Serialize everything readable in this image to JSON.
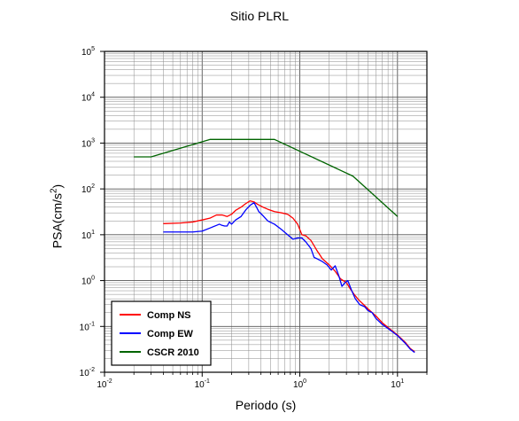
{
  "chart_data": {
    "type": "line",
    "title": "Sitio PLRL",
    "xlabel": "Periodo (s)",
    "ylabel_text": "PSA(cm/s",
    "ylabel_sup": "2",
    "ylabel_close": ")",
    "x_scale": "log",
    "y_scale": "log",
    "xlim": [
      0.01,
      20
    ],
    "ylim": [
      0.01,
      100000
    ],
    "grid": true,
    "legend_position": "bottom-left",
    "x_ticks": [
      {
        "value": 0.01,
        "base": "10",
        "exp": "-2"
      },
      {
        "value": 0.1,
        "base": "10",
        "exp": "-1"
      },
      {
        "value": 1,
        "base": "10",
        "exp": "0"
      },
      {
        "value": 10,
        "base": "10",
        "exp": "1"
      }
    ],
    "y_ticks": [
      {
        "value": 0.01,
        "base": "10",
        "exp": "-2"
      },
      {
        "value": 0.1,
        "base": "10",
        "exp": "-1"
      },
      {
        "value": 1,
        "base": "10",
        "exp": "0"
      },
      {
        "value": 10,
        "base": "10",
        "exp": "1"
      },
      {
        "value": 100,
        "base": "10",
        "exp": "2"
      },
      {
        "value": 1000,
        "base": "10",
        "exp": "3"
      },
      {
        "value": 10000,
        "base": "10",
        "exp": "4"
      },
      {
        "value": 100000,
        "base": "10",
        "exp": "5"
      }
    ],
    "series": [
      {
        "name": "Comp NS",
        "color": "#ff0000",
        "points": [
          [
            0.04,
            17.5
          ],
          [
            0.06,
            18
          ],
          [
            0.08,
            19
          ],
          [
            0.1,
            21
          ],
          [
            0.12,
            23
          ],
          [
            0.14,
            27
          ],
          [
            0.16,
            27
          ],
          [
            0.18,
            25
          ],
          [
            0.2,
            28
          ],
          [
            0.22,
            34
          ],
          [
            0.25,
            40
          ],
          [
            0.28,
            48
          ],
          [
            0.31,
            55
          ],
          [
            0.34,
            52
          ],
          [
            0.37,
            46
          ],
          [
            0.42,
            40
          ],
          [
            0.47,
            36
          ],
          [
            0.55,
            32
          ],
          [
            0.65,
            30
          ],
          [
            0.75,
            28
          ],
          [
            0.85,
            23
          ],
          [
            0.95,
            17
          ],
          [
            1.05,
            10
          ],
          [
            1.15,
            9.5
          ],
          [
            1.3,
            7.5
          ],
          [
            1.5,
            4.5
          ],
          [
            1.7,
            3
          ],
          [
            2.0,
            2.2
          ],
          [
            2.3,
            1.6
          ],
          [
            2.6,
            1.1
          ],
          [
            3.0,
            0.9
          ],
          [
            3.3,
            0.65
          ],
          [
            3.6,
            0.5
          ],
          [
            4.0,
            0.38
          ],
          [
            4.5,
            0.3
          ],
          [
            5.0,
            0.24
          ],
          [
            6.0,
            0.17
          ],
          [
            7.0,
            0.12
          ],
          [
            8.0,
            0.095
          ],
          [
            10,
            0.065
          ],
          [
            12,
            0.045
          ],
          [
            13.5,
            0.033
          ],
          [
            15,
            0.028
          ]
        ]
      },
      {
        "name": "Comp EW",
        "color": "#0000ff",
        "points": [
          [
            0.04,
            11.5
          ],
          [
            0.06,
            11.5
          ],
          [
            0.08,
            11.5
          ],
          [
            0.1,
            12
          ],
          [
            0.12,
            14
          ],
          [
            0.14,
            16
          ],
          [
            0.15,
            17
          ],
          [
            0.16,
            16
          ],
          [
            0.17,
            15.5
          ],
          [
            0.18,
            15.5
          ],
          [
            0.19,
            19
          ],
          [
            0.2,
            17
          ],
          [
            0.22,
            21
          ],
          [
            0.25,
            25
          ],
          [
            0.28,
            35
          ],
          [
            0.31,
            44
          ],
          [
            0.34,
            50
          ],
          [
            0.36,
            40
          ],
          [
            0.38,
            32
          ],
          [
            0.42,
            26
          ],
          [
            0.47,
            20
          ],
          [
            0.55,
            17
          ],
          [
            0.65,
            13
          ],
          [
            0.75,
            10
          ],
          [
            0.85,
            8
          ],
          [
            0.95,
            8.5
          ],
          [
            1.05,
            8.5
          ],
          [
            1.15,
            7
          ],
          [
            1.3,
            5
          ],
          [
            1.4,
            3.2
          ],
          [
            1.5,
            3
          ],
          [
            1.7,
            2.6
          ],
          [
            1.9,
            2.2
          ],
          [
            2.1,
            1.7
          ],
          [
            2.3,
            2.1
          ],
          [
            2.5,
            1.3
          ],
          [
            2.7,
            0.75
          ],
          [
            2.9,
            0.9
          ],
          [
            3.1,
            1.0
          ],
          [
            3.4,
            0.6
          ],
          [
            3.7,
            0.4
          ],
          [
            4.1,
            0.3
          ],
          [
            4.6,
            0.27
          ],
          [
            5.0,
            0.22
          ],
          [
            5.5,
            0.2
          ],
          [
            6.0,
            0.15
          ],
          [
            7.0,
            0.11
          ],
          [
            8.0,
            0.09
          ],
          [
            10,
            0.063
          ],
          [
            12,
            0.043
          ],
          [
            13.5,
            0.032
          ],
          [
            15,
            0.027
          ]
        ]
      },
      {
        "name": "CSCR 2010",
        "color": "#006400",
        "points": [
          [
            0.02,
            500
          ],
          [
            0.03,
            500
          ],
          [
            0.12,
            1200
          ],
          [
            0.55,
            1200
          ],
          [
            3.5,
            190
          ],
          [
            10,
            25
          ]
        ]
      }
    ]
  }
}
